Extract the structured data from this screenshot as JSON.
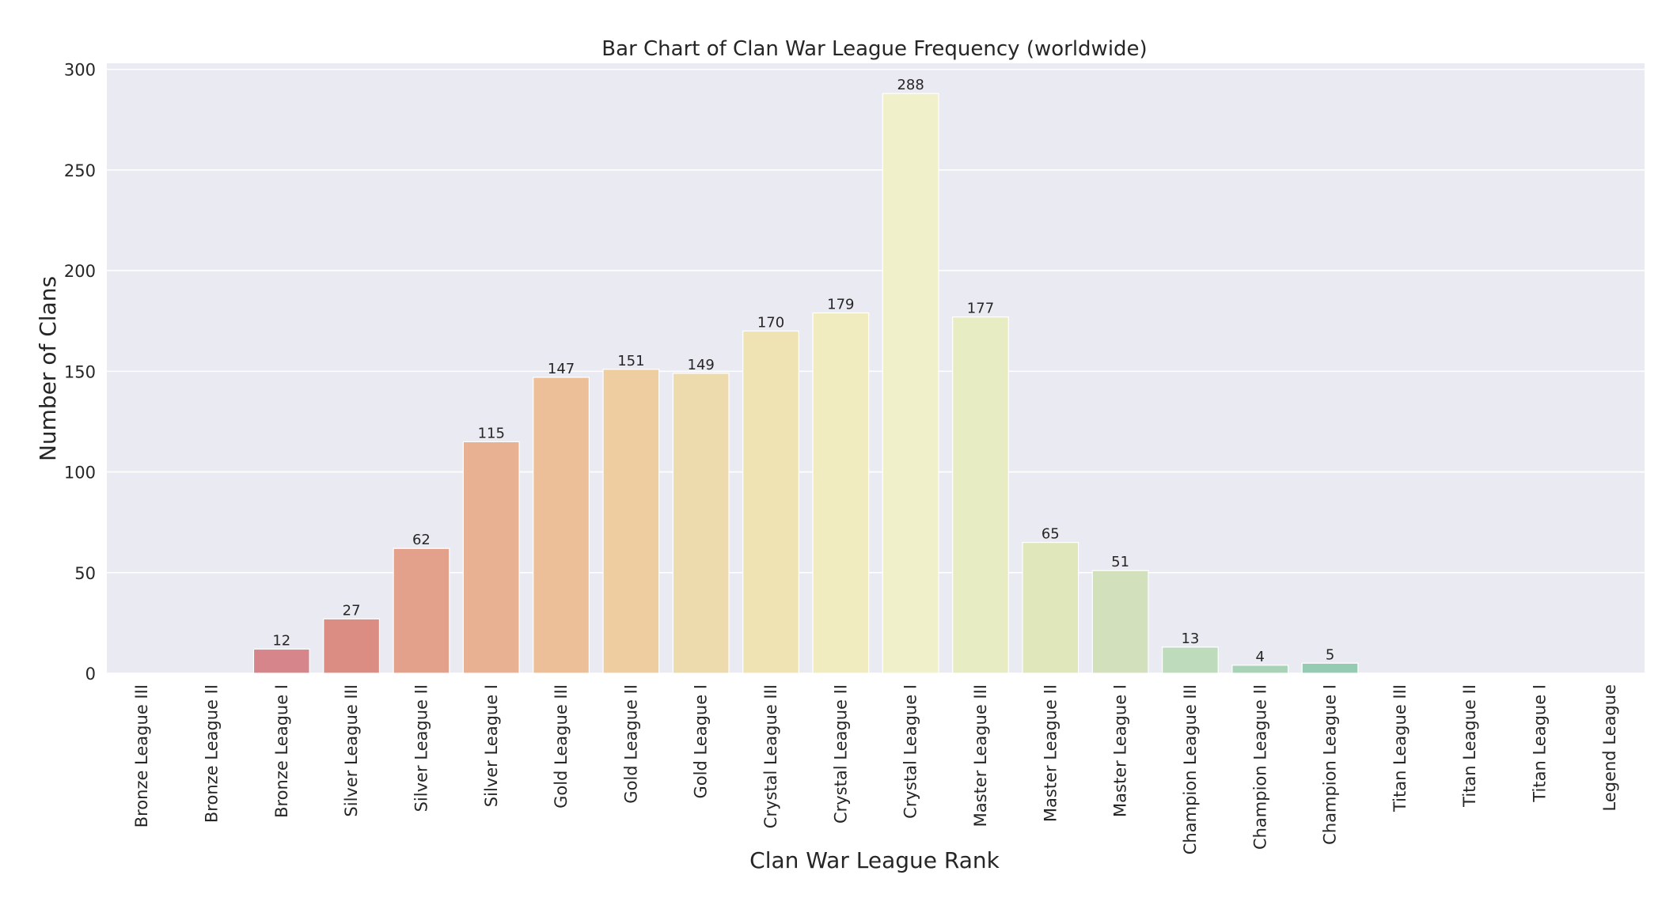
{
  "chart_data": {
    "type": "bar",
    "title": "Bar Chart of Clan War League Frequency (worldwide)",
    "xlabel": "Clan War League Rank",
    "ylabel": "Number of Clans",
    "ylim": [
      0,
      303
    ],
    "yticks": [
      0,
      50,
      100,
      150,
      200,
      250,
      300
    ],
    "grid": true,
    "legend": "none",
    "categories": [
      "Bronze League III",
      "Bronze League II",
      "Bronze League I",
      "Silver League III",
      "Silver League II",
      "Silver League I",
      "Gold League III",
      "Gold League II",
      "Gold League I",
      "Crystal League III",
      "Crystal League II",
      "Crystal League I",
      "Master League III",
      "Master League II",
      "Master League I",
      "Champion League III",
      "Champion League II",
      "Champion League I",
      "Titan League III",
      "Titan League II",
      "Titan League I",
      "Legend League"
    ],
    "values": [
      0,
      0,
      12,
      27,
      62,
      115,
      147,
      151,
      149,
      170,
      179,
      288,
      177,
      65,
      51,
      13,
      4,
      5,
      0,
      0,
      0,
      0
    ],
    "data_labels": [
      "",
      "",
      "12",
      "27",
      "62",
      "115",
      "147",
      "151",
      "149",
      "170",
      "179",
      "288",
      "177",
      "65",
      "51",
      "13",
      "4",
      "5",
      "",
      "",
      "",
      ""
    ],
    "colors": [
      "#c9a6ae",
      "#ccb0b0",
      "#d6868a",
      "#dc8d83",
      "#e3a08a",
      "#e8b191",
      "#ecbf98",
      "#eecda1",
      "#eddbae",
      "#efe2b3",
      "#f1ecbf",
      "#f0f0cb",
      "#e8ecc3",
      "#e0e8bb",
      "#d2e0bb",
      "#bedcbb",
      "#a9d3b6",
      "#96cbb3",
      "#a8cfbf",
      "#b4d6c8",
      "#bcdbd0",
      "#c8e1d8"
    ],
    "plot_background": "#eaeaf2"
  }
}
